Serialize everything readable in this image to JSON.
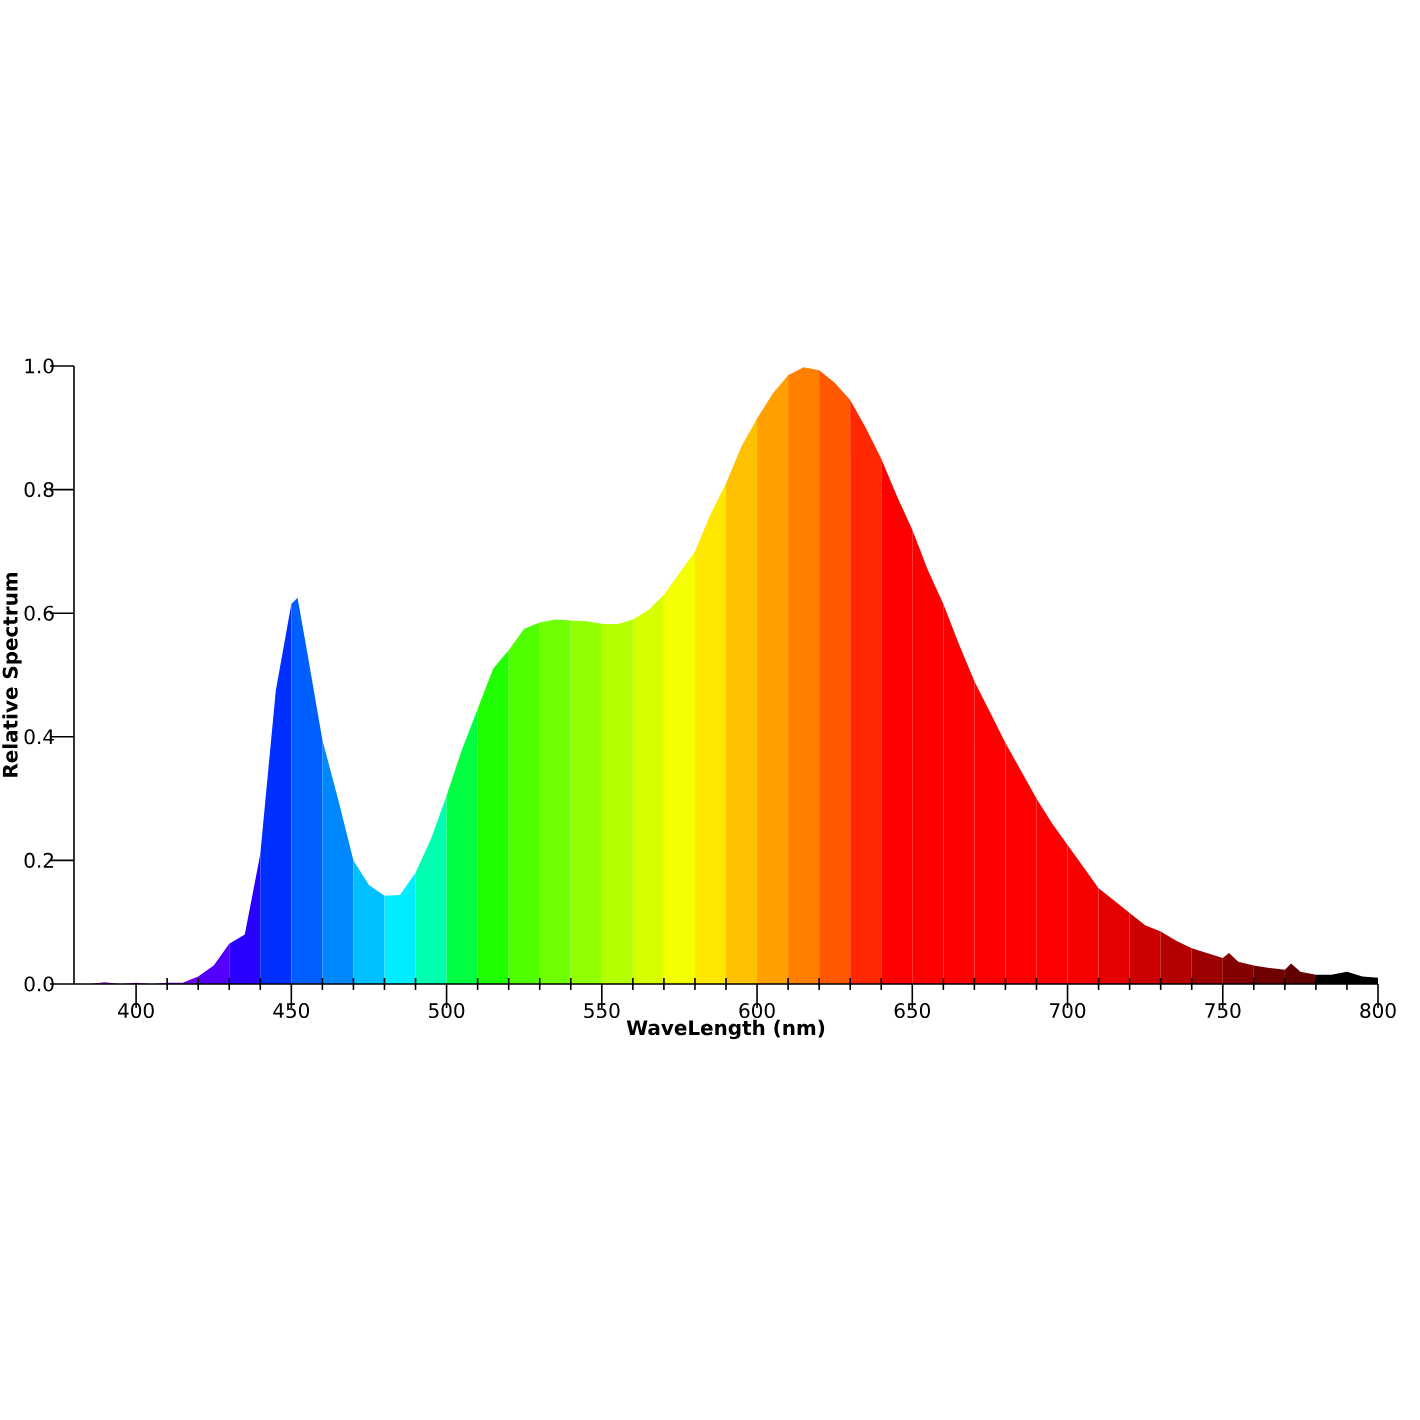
{
  "chart_data": {
    "type": "area",
    "xlabel": "WaveLength (nm)",
    "ylabel": "Relative Spectrum",
    "series": [
      {
        "color": "#7f00b0",
        "x": [
          380,
          385,
          390
        ],
        "values": [
          0,
          0,
          0.003
        ]
      },
      {
        "color": "#7f00d0",
        "x": [
          390,
          395,
          400
        ],
        "values": [
          0.003,
          0,
          0.002
        ]
      },
      {
        "color": "#7500ea",
        "x": [
          400,
          405,
          410
        ],
        "values": [
          0.002,
          0,
          0.002
        ]
      },
      {
        "color": "#6a00f8",
        "x": [
          410,
          415,
          420
        ],
        "values": [
          0.002,
          0.002,
          0.012
        ]
      },
      {
        "color": "#5500ff",
        "x": [
          420,
          425,
          430
        ],
        "values": [
          0.012,
          0.03,
          0.065
        ]
      },
      {
        "color": "#2800ff",
        "x": [
          430,
          435,
          440
        ],
        "values": [
          0.065,
          0.08,
          0.21
        ]
      },
      {
        "color": "#0030ff",
        "x": [
          440,
          445,
          450
        ],
        "values": [
          0.21,
          0.475,
          0.615
        ]
      },
      {
        "color": "#0060ff",
        "x": [
          450,
          452,
          455,
          460
        ],
        "values": [
          0.615,
          0.625,
          0.54,
          0.395
        ]
      },
      {
        "color": "#0088ff",
        "x": [
          460,
          465,
          470
        ],
        "values": [
          0.395,
          0.3,
          0.2
        ]
      },
      {
        "color": "#00c0ff",
        "x": [
          470,
          475,
          480
        ],
        "values": [
          0.2,
          0.16,
          0.143
        ]
      },
      {
        "color": "#00ecff",
        "x": [
          480,
          485,
          490
        ],
        "values": [
          0.143,
          0.144,
          0.18
        ]
      },
      {
        "color": "#00ffb0",
        "x": [
          490,
          495,
          500
        ],
        "values": [
          0.18,
          0.235,
          0.305
        ]
      },
      {
        "color": "#00ff40",
        "x": [
          500,
          505,
          510
        ],
        "values": [
          0.305,
          0.38,
          0.445
        ]
      },
      {
        "color": "#20ff00",
        "x": [
          510,
          515,
          520
        ],
        "values": [
          0.445,
          0.51,
          0.54
        ]
      },
      {
        "color": "#50ff00",
        "x": [
          520,
          525,
          530
        ],
        "values": [
          0.54,
          0.575,
          0.585
        ]
      },
      {
        "color": "#70ff00",
        "x": [
          530,
          535,
          540
        ],
        "values": [
          0.585,
          0.59,
          0.588
        ]
      },
      {
        "color": "#90ff00",
        "x": [
          540,
          545,
          550
        ],
        "values": [
          0.588,
          0.587,
          0.583
        ]
      },
      {
        "color": "#b4ff00",
        "x": [
          550,
          555,
          560
        ],
        "values": [
          0.583,
          0.582,
          0.59
        ]
      },
      {
        "color": "#d8ff00",
        "x": [
          560,
          565,
          570
        ],
        "values": [
          0.59,
          0.605,
          0.63
        ]
      },
      {
        "color": "#f4ff00",
        "x": [
          570,
          575,
          580
        ],
        "values": [
          0.63,
          0.665,
          0.7
        ]
      },
      {
        "color": "#ffe800",
        "x": [
          580,
          585,
          590
        ],
        "values": [
          0.7,
          0.76,
          0.81
        ]
      },
      {
        "color": "#ffc000",
        "x": [
          590,
          595,
          600
        ],
        "values": [
          0.81,
          0.87,
          0.915
        ]
      },
      {
        "color": "#ffa000",
        "x": [
          600,
          605,
          610
        ],
        "values": [
          0.915,
          0.955,
          0.985
        ]
      },
      {
        "color": "#ff8000",
        "x": [
          610,
          615,
          620
        ],
        "values": [
          0.985,
          0.998,
          0.993
        ]
      },
      {
        "color": "#ff5800",
        "x": [
          620,
          625,
          630
        ],
        "values": [
          0.993,
          0.973,
          0.945
        ]
      },
      {
        "color": "#ff2800",
        "x": [
          630,
          635,
          640
        ],
        "values": [
          0.945,
          0.9,
          0.85
        ]
      },
      {
        "color": "#ff0000",
        "x": [
          640,
          645,
          650
        ],
        "values": [
          0.85,
          0.79,
          0.735
        ]
      },
      {
        "color": "#ff0000",
        "x": [
          650,
          655,
          660
        ],
        "values": [
          0.735,
          0.67,
          0.615
        ]
      },
      {
        "color": "#ff0000",
        "x": [
          660,
          665,
          670
        ],
        "values": [
          0.615,
          0.55,
          0.49
        ]
      },
      {
        "color": "#ff0000",
        "x": [
          670,
          675,
          680
        ],
        "values": [
          0.49,
          0.44,
          0.39
        ]
      },
      {
        "color": "#ff0000",
        "x": [
          680,
          685,
          690
        ],
        "values": [
          0.39,
          0.345,
          0.3
        ]
      },
      {
        "color": "#ff0000",
        "x": [
          690,
          695,
          700
        ],
        "values": [
          0.3,
          0.26,
          0.225
        ]
      },
      {
        "color": "#f80000",
        "x": [
          700,
          705,
          710
        ],
        "values": [
          0.225,
          0.19,
          0.155
        ]
      },
      {
        "color": "#e40000",
        "x": [
          710,
          715,
          720
        ],
        "values": [
          0.155,
          0.135,
          0.115
        ]
      },
      {
        "color": "#cc0000",
        "x": [
          720,
          725,
          730
        ],
        "values": [
          0.115,
          0.095,
          0.085
        ]
      },
      {
        "color": "#b40000",
        "x": [
          730,
          735,
          740
        ],
        "values": [
          0.085,
          0.07,
          0.058
        ]
      },
      {
        "color": "#9c0000",
        "x": [
          740,
          745,
          750
        ],
        "values": [
          0.058,
          0.05,
          0.042
        ]
      },
      {
        "color": "#840000",
        "x": [
          750,
          752,
          755,
          760
        ],
        "values": [
          0.042,
          0.05,
          0.036,
          0.03
        ]
      },
      {
        "color": "#700000",
        "x": [
          760,
          765,
          770
        ],
        "values": [
          0.03,
          0.026,
          0.023
        ]
      },
      {
        "color": "#600000",
        "x": [
          770,
          772,
          775,
          780
        ],
        "values": [
          0.023,
          0.033,
          0.02,
          0.015
        ]
      },
      {
        "color": "#000000",
        "x": [
          780,
          785,
          790
        ],
        "values": [
          0.015,
          0.015,
          0.02
        ]
      },
      {
        "color": "#000000",
        "x": [
          790,
          795,
          800
        ],
        "values": [
          0.02,
          0.012,
          0.01
        ]
      }
    ],
    "xlim": [
      380,
      800
    ],
    "xticks": [
      400,
      {
        "value": 410,
        "label": null
      },
      {
        "value": 420,
        "label": null
      },
      {
        "value": 430,
        "label": null
      },
      {
        "value": 440,
        "label": null
      },
      450,
      {
        "value": 460,
        "label": null
      },
      {
        "value": 470,
        "label": null
      },
      {
        "value": 480,
        "label": null
      },
      {
        "value": 490,
        "label": null
      },
      500,
      {
        "value": 510,
        "label": null
      },
      {
        "value": 520,
        "label": null
      },
      {
        "value": 530,
        "label": null
      },
      {
        "value": 540,
        "label": null
      },
      550,
      {
        "value": 560,
        "label": null
      },
      {
        "value": 570,
        "label": null
      },
      {
        "value": 580,
        "label": null
      },
      {
        "value": 590,
        "label": null
      },
      600,
      {
        "value": 610,
        "label": null
      },
      {
        "value": 620,
        "label": null
      },
      {
        "value": 630,
        "label": null
      },
      {
        "value": 640,
        "label": null
      },
      650,
      {
        "value": 660,
        "label": null
      },
      {
        "value": 670,
        "label": null
      },
      {
        "value": 680,
        "label": null
      },
      {
        "value": 690,
        "label": null
      },
      700,
      {
        "value": 710,
        "label": null
      },
      {
        "value": 720,
        "label": null
      },
      {
        "value": 730,
        "label": null
      },
      {
        "value": 740,
        "label": null
      },
      750,
      {
        "value": 760,
        "label": null
      },
      {
        "value": 770,
        "label": null
      },
      {
        "value": 780,
        "label": null
      },
      {
        "value": 790,
        "label": null
      },
      800
    ],
    "ylim": [
      0,
      1
    ],
    "yticks": [
      {
        "value": 0,
        "label": "0.0"
      },
      0.2,
      0.4,
      0.6,
      0.8,
      {
        "value": 1,
        "label": "1.0"
      }
    ]
  }
}
